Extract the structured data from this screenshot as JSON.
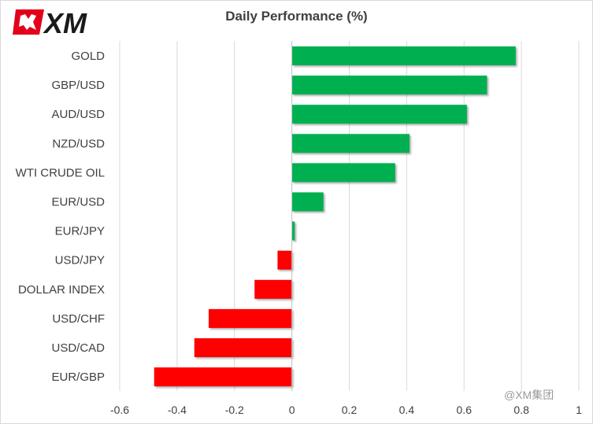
{
  "brand": {
    "logo_text": "XM",
    "accent_color": "#e3001b"
  },
  "watermark": "@XM集团",
  "colors": {
    "positive": "#00b050",
    "negative": "#ff0000",
    "grid": "#d9d9d9",
    "text": "#404040"
  },
  "chart_data": {
    "type": "bar",
    "orientation": "horizontal",
    "title": "Daily Performance (%)",
    "categories": [
      "GOLD",
      "GBP/USD",
      "AUD/USD",
      "NZD/USD",
      "WTI CRUDE OIL",
      "EUR/USD",
      "EUR/JPY",
      "USD/JPY",
      "DOLLAR INDEX",
      "USD/CHF",
      "USD/CAD",
      "EUR/GBP"
    ],
    "values": [
      0.78,
      0.68,
      0.61,
      0.41,
      0.36,
      0.11,
      0.01,
      -0.05,
      -0.13,
      -0.29,
      -0.34,
      -0.48
    ],
    "xlim": [
      -0.6,
      1
    ],
    "xticks": [
      "-0.6",
      "-0.4",
      "-0.2",
      "0",
      "0.2",
      "0.4",
      "0.6",
      "0.8",
      "1"
    ],
    "xtick_values": [
      -0.6,
      -0.4,
      -0.2,
      0,
      0.2,
      0.4,
      0.6,
      0.8,
      1
    ],
    "grid": "vertical",
    "legend": "none"
  }
}
